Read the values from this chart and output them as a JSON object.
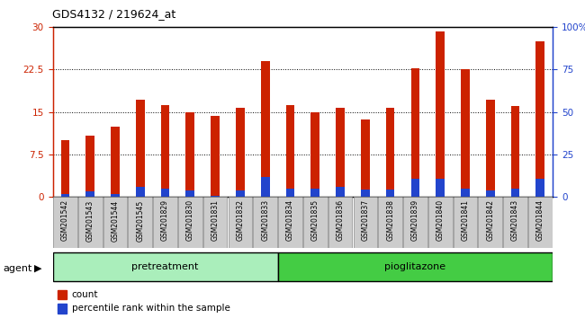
{
  "title": "GDS4132 / 219624_at",
  "samples": [
    "GSM201542",
    "GSM201543",
    "GSM201544",
    "GSM201545",
    "GSM201829",
    "GSM201830",
    "GSM201831",
    "GSM201832",
    "GSM201833",
    "GSM201834",
    "GSM201835",
    "GSM201836",
    "GSM201837",
    "GSM201838",
    "GSM201839",
    "GSM201840",
    "GSM201841",
    "GSM201842",
    "GSM201843",
    "GSM201844"
  ],
  "count_values": [
    10.0,
    10.8,
    12.5,
    17.2,
    16.3,
    15.0,
    14.3,
    15.7,
    24.0,
    16.2,
    14.9,
    15.7,
    13.7,
    15.7,
    22.7,
    29.3,
    22.5,
    17.2,
    16.0,
    27.5
  ],
  "percentile_values": [
    0.5,
    1.0,
    0.5,
    1.8,
    1.5,
    1.2,
    0.3,
    1.2,
    3.5,
    1.5,
    1.5,
    1.8,
    1.3,
    1.3,
    3.2,
    3.2,
    1.5,
    1.2,
    1.5,
    3.2
  ],
  "pretreatment_count": 9,
  "pioglitazone_count": 11,
  "pretreatment_label": "pretreatment",
  "pioglitazone_label": "pioglitazone",
  "agent_label": "agent",
  "red_color": "#cc2200",
  "blue_color": "#2244cc",
  "pretreatment_color": "#aaeebb",
  "pioglitazone_color": "#44cc44",
  "ticklabel_bg_color": "#cccccc",
  "ylim_left": [
    0,
    30
  ],
  "ylim_right": [
    0,
    100
  ],
  "yticks_left": [
    0,
    7.5,
    15,
    22.5,
    30
  ],
  "yticks_right": [
    0,
    25,
    50,
    75,
    100
  ],
  "ytick_labels_left": [
    "0",
    "7.5",
    "15",
    "22.5",
    "30"
  ],
  "ytick_labels_right": [
    "0",
    "25",
    "50",
    "75",
    "100%"
  ],
  "legend_count": "count",
  "legend_pct": "percentile rank within the sample",
  "bar_width": 0.35
}
